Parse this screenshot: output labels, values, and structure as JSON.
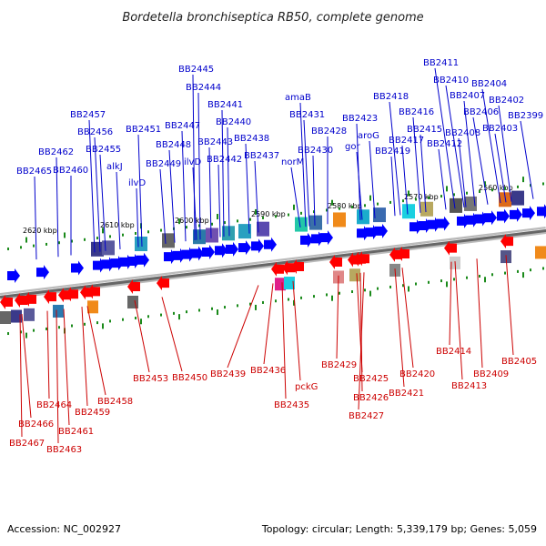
{
  "title": "Bordetella bronchiseptica RB50, complete genome",
  "footer": {
    "accession": "Accession: NC_002927",
    "topology": "Topology: circular; Length: 5,339,179 bp; Genes: 5,059"
  },
  "scale_labels": [
    "2620 kbp",
    "2610 kbp",
    "2600 kbp",
    "2590 kbp",
    "2580 kbp",
    "2570 kbp",
    "2560 kbp"
  ],
  "top_genes": [
    "BB2465",
    "BB2462",
    "BB2460",
    "BB2457",
    "BB2456",
    "BB2455",
    "alkJ",
    "BB2451",
    "ilvD",
    "BB2449",
    "BB2448",
    "BB2447",
    "BB2445",
    "BB2444",
    "ilvD",
    "BB2443",
    "BB2442",
    "BB2441",
    "BB2440",
    "BB2438",
    "BB2437",
    "amaB",
    "BB2431",
    "norM",
    "BB2430",
    "BB2428",
    "BB2423",
    "gor",
    "aroG",
    "BB2418",
    "BB2419",
    "BB2417",
    "BB2416",
    "BB2415",
    "BB2411",
    "BB2412",
    "BB2410",
    "BB2408",
    "BB2407",
    "BB2406",
    "BB2404",
    "BB2403",
    "BB2402",
    "BB2399"
  ],
  "bottom_genes": [
    "BB2467",
    "BB2466",
    "BB2464",
    "BB2463",
    "BB2461",
    "BB2459",
    "BB2458",
    "BB2453",
    "BB2450",
    "BB2439",
    "BB2436",
    "BB2435",
    "pckG",
    "BB2429",
    "BB2425",
    "BB2426",
    "BB2427",
    "BB2421",
    "BB2420",
    "BB2414",
    "BB2413",
    "BB2409",
    "BB2405"
  ],
  "colors": {
    "forward_strand": "#0000ff",
    "reverse_strand": "#ff0000",
    "forward_label": "#0000cc",
    "reverse_label": "#cc0000",
    "backbone": "#777777",
    "tick": "#1a8a1a"
  }
}
